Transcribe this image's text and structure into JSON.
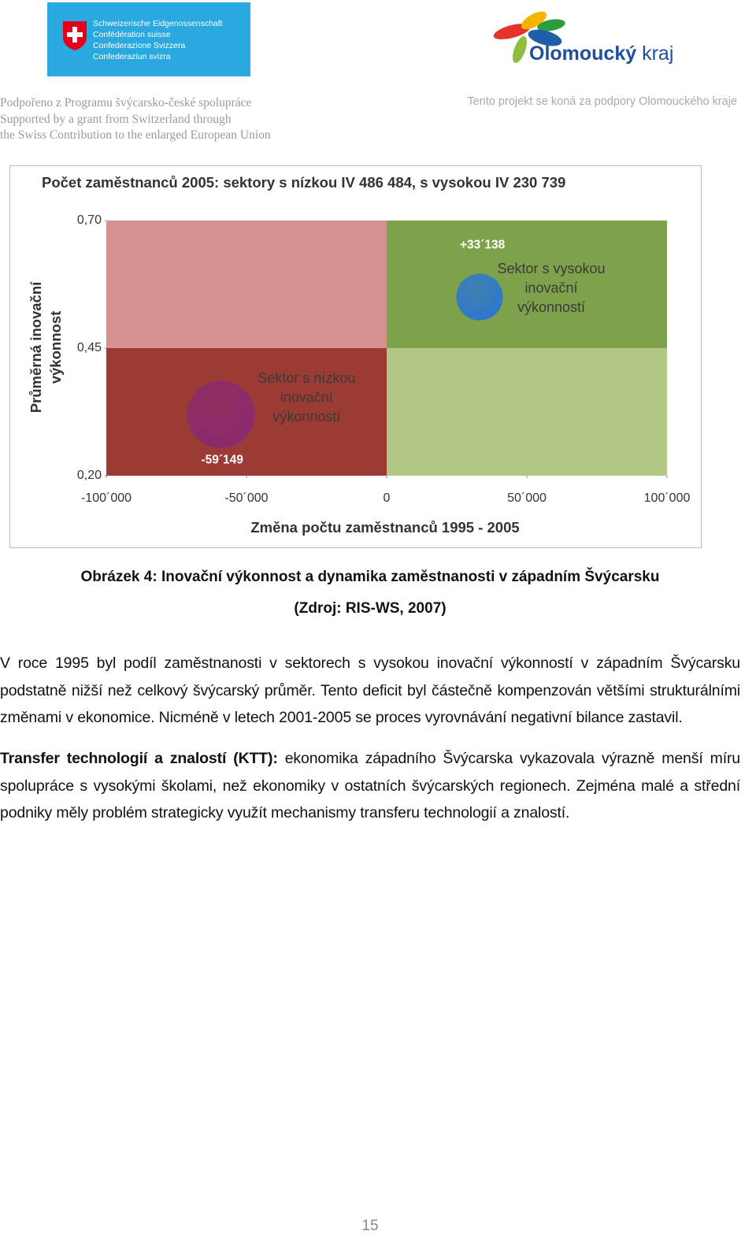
{
  "header": {
    "swiss_logo": [
      "Schweizerische Eidgenossenschaft",
      "Confédération suisse",
      "Confederazione Svizzera",
      "Confederaziun svizra"
    ],
    "region_logo": {
      "bold": "Olomoucký",
      "light": "kraj"
    },
    "left_lines": [
      "Podpořeno z Programu švýcarsko-české spolupráce",
      "Supported by a grant from Switzerland through",
      "the Swiss Contribution to the enlarged European Union"
    ],
    "right_line": "Tento projekt se koná za podpory Olomouckého kraje"
  },
  "chart_data": {
    "type": "bubble",
    "title": "Počet zaměstnanců 2005: sektory s nízkou IV 486 484, s vysokou IV 230 739",
    "ylabel": [
      "Průměrná inovační",
      "výkonnost"
    ],
    "xlabel": "Změna počtu zaměstnanců 1995 - 2005",
    "xlim": [
      -100000,
      100000
    ],
    "ylim": [
      0.2,
      0.7
    ],
    "xticks": [
      {
        "value": -100000,
        "label": "-100´000"
      },
      {
        "value": -50000,
        "label": "-50´000"
      },
      0,
      {
        "value": 50000,
        "label": "50´000"
      },
      {
        "value": 100000,
        "label": "100´000"
      }
    ],
    "yticks": [
      {
        "value": 0.7,
        "label": "0,70"
      },
      {
        "value": 0.45,
        "label": "0,45"
      },
      {
        "value": 0.2,
        "label": "0,20"
      }
    ],
    "quadrant_colors": [
      "#d4918e",
      "#7ea24b",
      "#9c3b34",
      "#b1c783"
    ],
    "points": [
      {
        "x": 33138,
        "y": 0.55,
        "size": 230739,
        "value_label": "+33´138",
        "color": "#2c77cf",
        "annotation": [
          "Sektor s vysokou",
          "inovační",
          "výkonností"
        ]
      },
      {
        "x": -59149,
        "y": 0.32,
        "size": 486484,
        "value_label": "-59´149",
        "color": "#8b2a6e",
        "annotation": [
          "Sektor s nízkou",
          "inovační",
          "výkonností"
        ]
      }
    ]
  },
  "caption": {
    "title": "Obrázek 4: Inovační výkonnost a dynamika zaměstnanosti v západním Švýcarsku",
    "source": "(Zdroj: RIS-WS, 2007)"
  },
  "paragraphs": [
    {
      "text": "V roce 1995 byl podíl zaměstnanosti v sektorech s vysokou inovační výkonností v západním Švýcarsku podstatně nižší než celkový švýcarský průměr. Tento deficit byl částečně kompenzován většími strukturálními změnami v  ekonomice. Nicméně v letech 2001-2005 se proces vyrovnávání negativní bilance zastavil."
    },
    {
      "lead": "Transfer technologií a znalostí (KTT):",
      "text": " ekonomika západního Švýcarska vykazovala výrazně menší míru spolupráce s vysokými školami, než ekonomiky v ostatních švýcarských regionech. Zejména malé a střední podniky měly problém strategicky využít mechanismy transferu technologií a znalostí."
    }
  ],
  "page_number": "15"
}
